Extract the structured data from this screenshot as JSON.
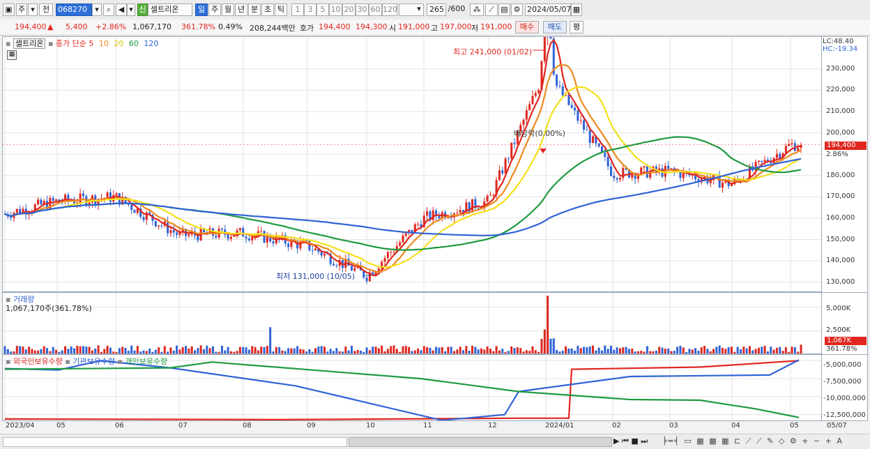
{
  "toolbar": {
    "period_unit": "주",
    "prev_label": "전",
    "stock_code": "068270",
    "new_tag": "신",
    "stock_name": "셀트리온",
    "periods": [
      "일",
      "주",
      "월",
      "년",
      "분",
      "초",
      "틱"
    ],
    "period_active": "일",
    "intervals": [
      "1",
      "3",
      "5",
      "10",
      "20",
      "30",
      "60",
      "120"
    ],
    "count": "265",
    "count_max": "/600",
    "date": "2024/05/07"
  },
  "info": {
    "price": "194,400",
    "change": "5,400",
    "change_pct": "+2.86%",
    "volume": "1,067,170",
    "volume_ratio": "361.78%",
    "turnover": "0.49%",
    "amount": "208,244백만",
    "ask_label": "호가",
    "ask": "194,400",
    "bid": "194,300",
    "open_label": "시",
    "open": "191,000",
    "high_label": "고",
    "high": "197,000",
    "low_label": "저",
    "low": "191,000",
    "buy_label": "매수",
    "sell_label": "매도",
    "eval_label": "평"
  },
  "price_panel": {
    "name_tag": "셀트리온",
    "ma_title": "종가 단순",
    "ma_periods": [
      "5",
      "10",
      "20",
      "60",
      "120"
    ],
    "ma_colors": [
      "#e0261f",
      "#ee8a1d",
      "#f3e01a",
      "#1f9a3f",
      "#2f63d6"
    ],
    "high_note": "최고 241,000 (01/02)",
    "low_note": "최저 131,000 (10/05)",
    "dividend_note": "배당락(0.00%)",
    "lc": "LC:48.40",
    "hc": "HC:-19.34",
    "y_ticks": [
      "230,000",
      "220,000",
      "210,000",
      "200,000",
      "180,000",
      "170,000",
      "160,000",
      "150,000",
      "140,000",
      "130,000"
    ],
    "current_tag": "194,400",
    "current_pct": "2.86%"
  },
  "volume_panel": {
    "title": "거래량",
    "value_text": "1,067,170주(361.78%)",
    "y_ticks": [
      "5,000K",
      "2,500K"
    ],
    "current_tag": "1,067K",
    "current_pct": "361.78%"
  },
  "holding_panel": {
    "series": [
      "외국인보유수량",
      "기관보유수량",
      "개인보유수량"
    ],
    "colors": [
      "#e0261f",
      "#2f63d6",
      "#1f9a3f"
    ],
    "y_ticks": [
      "-5,000,000",
      "-7,500,000",
      "-10,000,000",
      "-12,500,000"
    ]
  },
  "x_axis": {
    "labels": [
      "2023/04",
      "05",
      "06",
      "07",
      "08",
      "09",
      "10",
      "11",
      "12",
      "2024/01",
      "02",
      "03",
      "04",
      "05"
    ],
    "end_label": "05/07"
  },
  "chart_data": {
    "type": "candlestick",
    "months": [
      "2023/04",
      "05",
      "06",
      "07",
      "08",
      "09",
      "10",
      "11",
      "12",
      "2024/01",
      "02",
      "03",
      "04",
      "05"
    ],
    "close_by_month_approx": [
      162000,
      168000,
      170000,
      152000,
      153000,
      147000,
      133000,
      160000,
      168000,
      230000,
      181000,
      182000,
      176000,
      194400
    ],
    "high": {
      "value": 241000,
      "date": "01/02"
    },
    "low": {
      "value": 131000,
      "date": "10/05"
    },
    "last": {
      "value": 194400,
      "change": 5400,
      "change_pct": 2.86
    },
    "y_range": [
      125000,
      245000
    ],
    "volume_last_k": 1067,
    "volume_y_ticks_k": [
      2500,
      5000
    ],
    "holding_y_range": [
      -13500000,
      -4200000
    ]
  }
}
